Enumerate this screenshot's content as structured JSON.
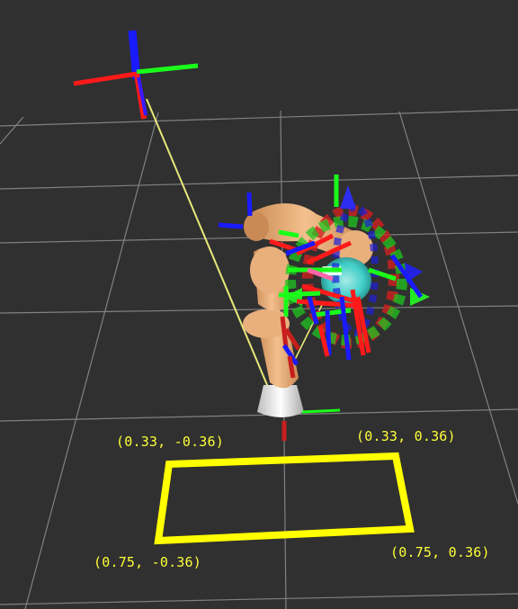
{
  "viewer": {
    "background": "#303030",
    "grid_color": "#a0a0a0",
    "workspace_outline_color": "#ffff00",
    "link_line_color": "#e8e87a",
    "axis_colors": {
      "x": "#ff1a1a",
      "y": "#1aff1a",
      "z": "#1a1aff"
    },
    "robot_colors": {
      "arm": "#e9b07d",
      "joint_accent": "#c98a55",
      "base": "#ededed",
      "tool": "#3fd6cf"
    }
  },
  "workspace": {
    "corners": [
      {
        "label": "(0.33, -0.36)"
      },
      {
        "label": "(0.33, 0.36)"
      },
      {
        "label": "(0.75, -0.36)"
      },
      {
        "label": "(0.75, 0.36)"
      }
    ]
  },
  "icons": {
    "reference_frame": "axes-frame-icon",
    "interactive_marker": "interactive-marker-rings-icon"
  }
}
